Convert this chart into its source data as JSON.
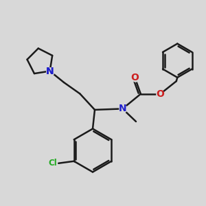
{
  "bg": "#d8d8d8",
  "bc": "#1a1a1a",
  "nc": "#2020cc",
  "oc": "#cc2020",
  "clc": "#22aa22",
  "lw": 1.8,
  "figsize": [
    3.0,
    3.0
  ],
  "dpi": 100,
  "xlim": [
    -1.0,
    9.0
  ],
  "ylim": [
    -0.5,
    9.5
  ]
}
